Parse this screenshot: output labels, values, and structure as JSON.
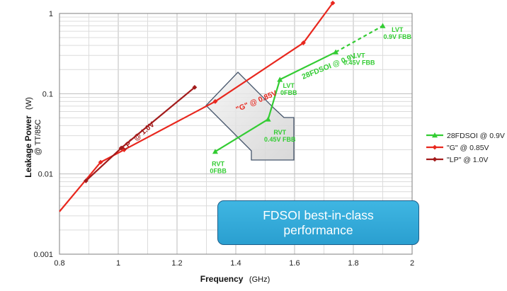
{
  "chart_data": {
    "type": "line",
    "xlabel": "Frequency",
    "xlabel_unit": "(GHz)",
    "ylabel": "Leakage Power",
    "ylabel_unit": "(W)",
    "ylabel_sub": "@ TT/85C",
    "xlim": [
      0.8,
      2.0
    ],
    "ylim": [
      0.001,
      1
    ],
    "yscale": "log",
    "x_ticks": [
      "0.8",
      "1",
      "1.2",
      "1.4",
      "1.6",
      "1.8",
      "2"
    ],
    "y_ticks": [
      "0.001",
      "0.01",
      "0.1",
      "1"
    ],
    "grid": true,
    "legend_position": "right",
    "series": [
      {
        "name": "28FDSOI @ 0.9V",
        "color": "#33cc33",
        "marker": "triangle",
        "x": [
          1.33,
          1.51,
          1.55,
          1.74,
          1.9
        ],
        "y": [
          0.019,
          0.048,
          0.15,
          0.33,
          0.7
        ],
        "dashed_last_segment": true,
        "curve_label": "28FDSOI @ 0.9V"
      },
      {
        "name": "\"G\" @ 0.85V",
        "color": "#e8271e",
        "marker": "diamond",
        "x": [
          0.8,
          0.94,
          1.02,
          1.33,
          1.63,
          1.73
        ],
        "y": [
          0.0034,
          0.014,
          0.02,
          0.08,
          0.43,
          1.35
        ],
        "curve_label": "\"G\" @ 0.85V"
      },
      {
        "name": "\"LP\" @ 1.0V",
        "color": "#a31b1b",
        "marker": "diamond",
        "x": [
          0.89,
          1.01,
          1.26
        ],
        "y": [
          0.0082,
          0.021,
          0.12
        ],
        "curve_label": "\"LP\" @ 1.0V"
      }
    ],
    "annotations": [
      {
        "lines": [
          "RVT",
          "0FBB"
        ],
        "x": 1.34,
        "y": 0.0125
      },
      {
        "lines": [
          "RVT",
          "0.45V FBB"
        ],
        "x": 1.55,
        "y": 0.031
      },
      {
        "lines": [
          "LVT",
          "0FBB"
        ],
        "x": 1.58,
        "y": 0.118
      },
      {
        "lines": [
          "LVT",
          "0.45V FBB"
        ],
        "x": 1.82,
        "y": 0.28
      },
      {
        "lines": [
          "LVT",
          "0.9V FBB"
        ],
        "x": 1.95,
        "y": 0.59
      }
    ],
    "callout": [
      "FDSOI best-in-class",
      "performance"
    ]
  }
}
